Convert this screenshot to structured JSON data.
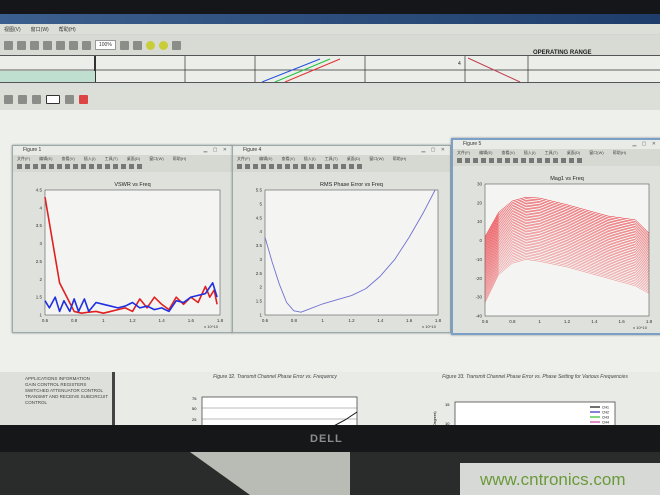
{
  "app": {
    "menu": [
      "视图(V)",
      "窗口(W)",
      "帮助(H)"
    ],
    "zoom": "100%",
    "ruler_label": "OPERATING RANGE",
    "ruler_num": "4"
  },
  "figures": [
    {
      "title": "Figure 1",
      "menu": [
        "文件(F)",
        "编辑(E)",
        "查看(V)",
        "插入(I)",
        "工具(T)",
        "桌面(D)",
        "窗口(W)",
        "帮助(H)"
      ]
    },
    {
      "title": "Figure 4",
      "menu": [
        "文件(F)",
        "编辑(E)",
        "查看(V)",
        "插入(I)",
        "工具(T)",
        "桌面(D)",
        "窗口(W)",
        "帮助(H)"
      ]
    },
    {
      "title": "Figure 5",
      "menu": [
        "文件(F)",
        "编辑(E)",
        "查看(V)",
        "插入(I)",
        "工具(T)",
        "桌面(D)",
        "窗口(W)",
        "帮助(H)"
      ]
    }
  ],
  "chart_data": [
    {
      "type": "line",
      "title": "VSWR vs Freq",
      "xlim": [
        0.6,
        1.8
      ],
      "ylim": [
        1,
        4.5
      ],
      "xticks": [
        "0.6",
        "0.8",
        "1",
        "1.2",
        "1.4",
        "1.6",
        "1.8"
      ],
      "yticks": [
        "1",
        "1.5",
        "2",
        "2.5",
        "3",
        "3.5",
        "4",
        "4.5"
      ],
      "x_multiplier": "x 10^10",
      "grid": false,
      "series": [
        {
          "color": "#e02020",
          "x": [
            0.6,
            0.65,
            0.7,
            0.75,
            0.8,
            0.85,
            0.9,
            0.95,
            1.0,
            1.05,
            1.1,
            1.15,
            1.2,
            1.25,
            1.3,
            1.35,
            1.4,
            1.45,
            1.5,
            1.55,
            1.6,
            1.65,
            1.7,
            1.73,
            1.76,
            1.78
          ],
          "y": [
            4.3,
            3.1,
            1.9,
            1.5,
            1.1,
            1.05,
            1.08,
            1.1,
            1.05,
            1.1,
            1.15,
            1.2,
            1.1,
            1.45,
            1.2,
            1.5,
            1.3,
            1.15,
            1.5,
            1.3,
            1.5,
            1.35,
            1.8,
            1.5,
            1.7,
            1.3
          ]
        },
        {
          "color": "#2030e0",
          "x": [
            0.6,
            0.63,
            0.67,
            0.7,
            0.73,
            0.77,
            0.8,
            0.83,
            0.87,
            0.9,
            0.95,
            1.0,
            1.05,
            1.1,
            1.15,
            1.2,
            1.25,
            1.3,
            1.35,
            1.4,
            1.45,
            1.5,
            1.55,
            1.6,
            1.65,
            1.7,
            1.75,
            1.78
          ],
          "y": [
            1.4,
            1.2,
            1.5,
            1.1,
            1.4,
            1.1,
            1.45,
            1.1,
            1.45,
            1.1,
            1.35,
            1.3,
            1.25,
            1.2,
            1.25,
            1.35,
            1.2,
            1.25,
            1.15,
            1.2,
            1.1,
            1.4,
            1.35,
            1.5,
            1.55,
            1.6,
            1.9,
            1.5
          ]
        }
      ]
    },
    {
      "type": "line",
      "title": "RMS Phase Error vs Freq",
      "xlim": [
        0.6,
        1.8
      ],
      "ylim": [
        1,
        5.5
      ],
      "xticks": [
        "0.6",
        "0.8",
        "1",
        "1.2",
        "1.4",
        "1.6",
        "1.8"
      ],
      "yticks": [
        "1",
        "1.5",
        "2",
        "2.5",
        "3",
        "3.5",
        "4",
        "4.5",
        "5",
        "5.5"
      ],
      "x_multiplier": "x 10^10",
      "grid": false,
      "series": [
        {
          "color": "#7070d0",
          "x": [
            0.6,
            0.65,
            0.7,
            0.75,
            0.8,
            0.85,
            0.9,
            1.0,
            1.1,
            1.2,
            1.3,
            1.4,
            1.5,
            1.6,
            1.7,
            1.78
          ],
          "y": [
            3.8,
            2.9,
            2.1,
            1.45,
            1.15,
            1.1,
            1.2,
            1.4,
            1.55,
            1.7,
            1.95,
            2.4,
            3.0,
            3.8,
            4.7,
            5.5
          ]
        }
      ]
    },
    {
      "type": "line",
      "title": "Mag1 vs Freq",
      "xlim": [
        0.6,
        1.8
      ],
      "ylim": [
        -40,
        30
      ],
      "xticks": [
        "0.6",
        "0.8",
        "1",
        "1.2",
        "1.4",
        "1.6",
        "1.8"
      ],
      "yticks": [
        "-40",
        "-30",
        "-20",
        "-10",
        "0",
        "10",
        "20",
        "30"
      ],
      "x_multiplier": "x 10^10",
      "grid": false,
      "color": "#e8101a",
      "x": [
        0.6,
        0.7,
        0.8,
        0.9,
        1.0,
        1.2,
        1.4,
        1.5,
        1.7,
        1.8
      ],
      "upper_curve": [
        2,
        15,
        21,
        23,
        22.5,
        19,
        15,
        13,
        11,
        4
      ],
      "lower_curve": [
        -33,
        -18,
        -12,
        -10,
        -11,
        -14,
        -18,
        -20,
        -24,
        -28
      ]
    }
  ],
  "document": {
    "sidebar": [
      "APPLICATIONS INFORMATION",
      "GAIN CONTROL REGISTERS",
      "SWITCHED ATTENUATOR CONTROL",
      "TRANSMIT AND RECEIVE SUBCIRCUIT CONTROL"
    ],
    "caption1": "Figure 32. Transmit Channel Phase Error vs. Frequency",
    "caption2": "Figure 33. Transmit Channel Phase Error vs. Phase Setting for Various Frequencies",
    "plot1_yticks": [
      "75",
      "50",
      "25"
    ],
    "plot2_yticks": [
      "15",
      "10"
    ],
    "plot2_ylabel": "(Degrees)",
    "legend": [
      "CH1",
      "CH2",
      "CH3",
      "CH4"
    ],
    "legend_colors": [
      "#111111",
      "#3030c0",
      "#30c030",
      "#d040a0"
    ]
  },
  "monitor_brand": "DELL",
  "watermark": "www.cntronics.com"
}
